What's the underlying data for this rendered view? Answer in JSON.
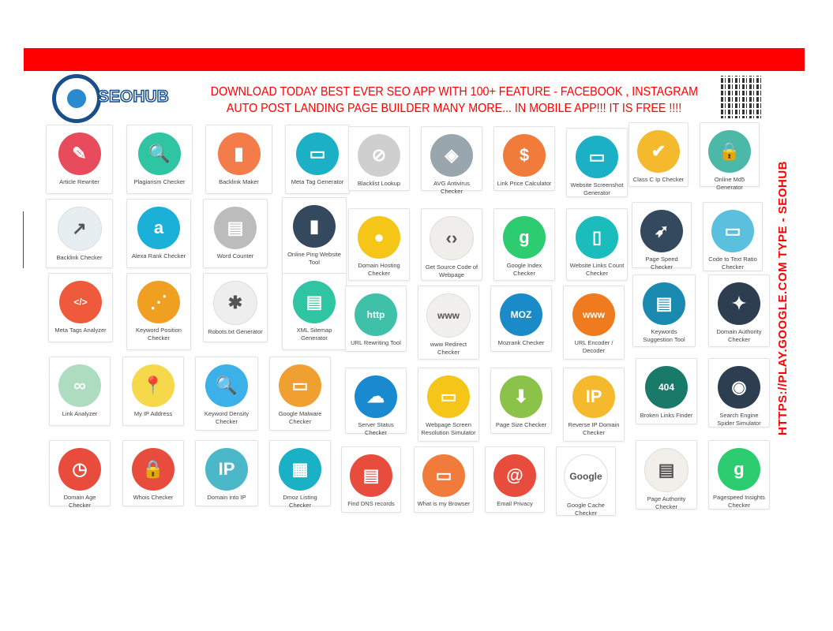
{
  "brand": {
    "name": "SEOHUB",
    "accent": "#ff0000"
  },
  "promo": {
    "line1": "DOWNLOAD TODAY BEST EVER SEO APP WITH 100+ FEATURE  - FACEBOOK , INSTAGRAM",
    "line2": "AUTO POST  LANDING PAGE BUILDER  MANY MORE... IN MOBILE APP!!! IT IS FREE !!!!"
  },
  "side_text": "HTTPS://PLAY.GOOGLE.COM    TYPE - SEOHUB",
  "tools": [
    {
      "label": "Article Rewriter",
      "color": "#e84c5c",
      "icon": "✎"
    },
    {
      "label": "Plagiarism Checker",
      "color": "#2fc4a2",
      "icon": "🔍"
    },
    {
      "label": "Backlink Maker",
      "color": "#f47b4a",
      "icon": "▮"
    },
    {
      "label": "Meta Tag Generator",
      "color": "#1bb0c6",
      "icon": "▭"
    },
    {
      "label": "Blacklist Lookup",
      "color": "#cfcfcf",
      "icon": "⊘"
    },
    {
      "label": "AVG Antivirus Checker",
      "color": "#9aa6ae",
      "icon": "◈"
    },
    {
      "label": "Link Price Calculator",
      "color": "#f07b3b",
      "icon": "$"
    },
    {
      "label": "Website Screenshot Generator",
      "color": "#1bb0c6",
      "icon": "▭"
    },
    {
      "label": "Class C Ip Checker",
      "color": "#f5b92e",
      "icon": "✔"
    },
    {
      "label": "Online Md5 Generator",
      "color": "#4bb8a8",
      "icon": "🔒"
    },
    {
      "label": "Backlink Checker",
      "color": "#e6eef2",
      "icon": "↗"
    },
    {
      "label": "Alexa Rank Checker",
      "color": "#1ab0d8",
      "icon": "a"
    },
    {
      "label": "Word Counter",
      "color": "#bcbcbc",
      "icon": "▤"
    },
    {
      "label": "Online Ping Website Tool",
      "color": "#34495e",
      "icon": "▮"
    },
    {
      "label": "Domain Hosting Checker",
      "color": "#f5c518",
      "icon": "●"
    },
    {
      "label": "Get Source Code of Webpage",
      "color": "#f0eeea",
      "icon": "‹›"
    },
    {
      "label": "Google Index Checker",
      "color": "#2ecc71",
      "icon": "g"
    },
    {
      "label": "Website Links Count Checker",
      "color": "#1abcbc",
      "icon": "▯"
    },
    {
      "label": "Page Speed Checker",
      "color": "#34495e",
      "icon": "➶"
    },
    {
      "label": "Code to Text Ratio Checker",
      "color": "#5bc0de",
      "icon": "▭"
    },
    {
      "label": "Meta Tags Analyzer",
      "color": "#f05a3c",
      "icon": "</>"
    },
    {
      "label": "Keyword Position Checker",
      "color": "#f0a020",
      "icon": "⋰"
    },
    {
      "label": "Robots.txt Generator",
      "color": "#eeeeee",
      "icon": "✱"
    },
    {
      "label": "XML Sitemap Generator",
      "color": "#2fc4a2",
      "icon": "▤"
    },
    {
      "label": "URL Rewriting Tool",
      "color": "#3ec1a8",
      "icon": "http"
    },
    {
      "label": "www Redirect Checker",
      "color": "#f2f0ec",
      "icon": "www"
    },
    {
      "label": "Mozrank Checker",
      "color": "#1a8ac8",
      "icon": "MOZ"
    },
    {
      "label": "URL Encoder / Decoder",
      "color": "#f07a1e",
      "icon": "www"
    },
    {
      "label": "Keywords Suggestion Tool",
      "color": "#1a8ab0",
      "icon": "▤"
    },
    {
      "label": "Domain Authority Checker",
      "color": "#2c3e50",
      "icon": "✦"
    },
    {
      "label": "Link Analyzer",
      "color": "#aedcc0",
      "icon": "∞"
    },
    {
      "label": "My IP Address",
      "color": "#f5d94a",
      "icon": "📍"
    },
    {
      "label": "Keyword Density Checker",
      "color": "#3cb0e8",
      "icon": "🔍"
    },
    {
      "label": "Google Malware Checker",
      "color": "#f0a030",
      "icon": "▭"
    },
    {
      "label": "Server Status Checker",
      "color": "#1a8ad0",
      "icon": "☁"
    },
    {
      "label": "Webpage Screen Resolution Simulator",
      "color": "#f5c518",
      "icon": "▭"
    },
    {
      "label": "Page Size Checker",
      "color": "#8bc34a",
      "icon": "⬇"
    },
    {
      "label": "Reverse IP Domain Checker",
      "color": "#f5b92e",
      "icon": "IP"
    },
    {
      "label": "Broken Links Finder",
      "color": "#1a7a6a",
      "icon": "404"
    },
    {
      "label": "Search Engine Spider Simulator",
      "color": "#2c3e50",
      "icon": "◉"
    },
    {
      "label": "Domain Age Checker",
      "color": "#e74c3c",
      "icon": "◷"
    },
    {
      "label": "Whois Checker",
      "color": "#e74c3c",
      "icon": "🔒"
    },
    {
      "label": "Domain into IP",
      "color": "#4ab8c8",
      "icon": "IP"
    },
    {
      "label": "Dmoz Listing Checker",
      "color": "#1ab0c6",
      "icon": "▦"
    },
    {
      "label": "Find DNS records",
      "color": "#e74c3c",
      "icon": "▤"
    },
    {
      "label": "What is my Browser",
      "color": "#f07b3b",
      "icon": "▭"
    },
    {
      "label": "Email Privacy",
      "color": "#e74c3c",
      "icon": "@"
    },
    {
      "label": "Google Cache Checker",
      "color": "#ffffff",
      "icon": "Google"
    },
    {
      "label": "Page Authority Checker",
      "color": "#f2eeea",
      "icon": "▤"
    },
    {
      "label": "Pagespeed Insights Checker",
      "color": "#2ecc71",
      "icon": "g"
    }
  ]
}
